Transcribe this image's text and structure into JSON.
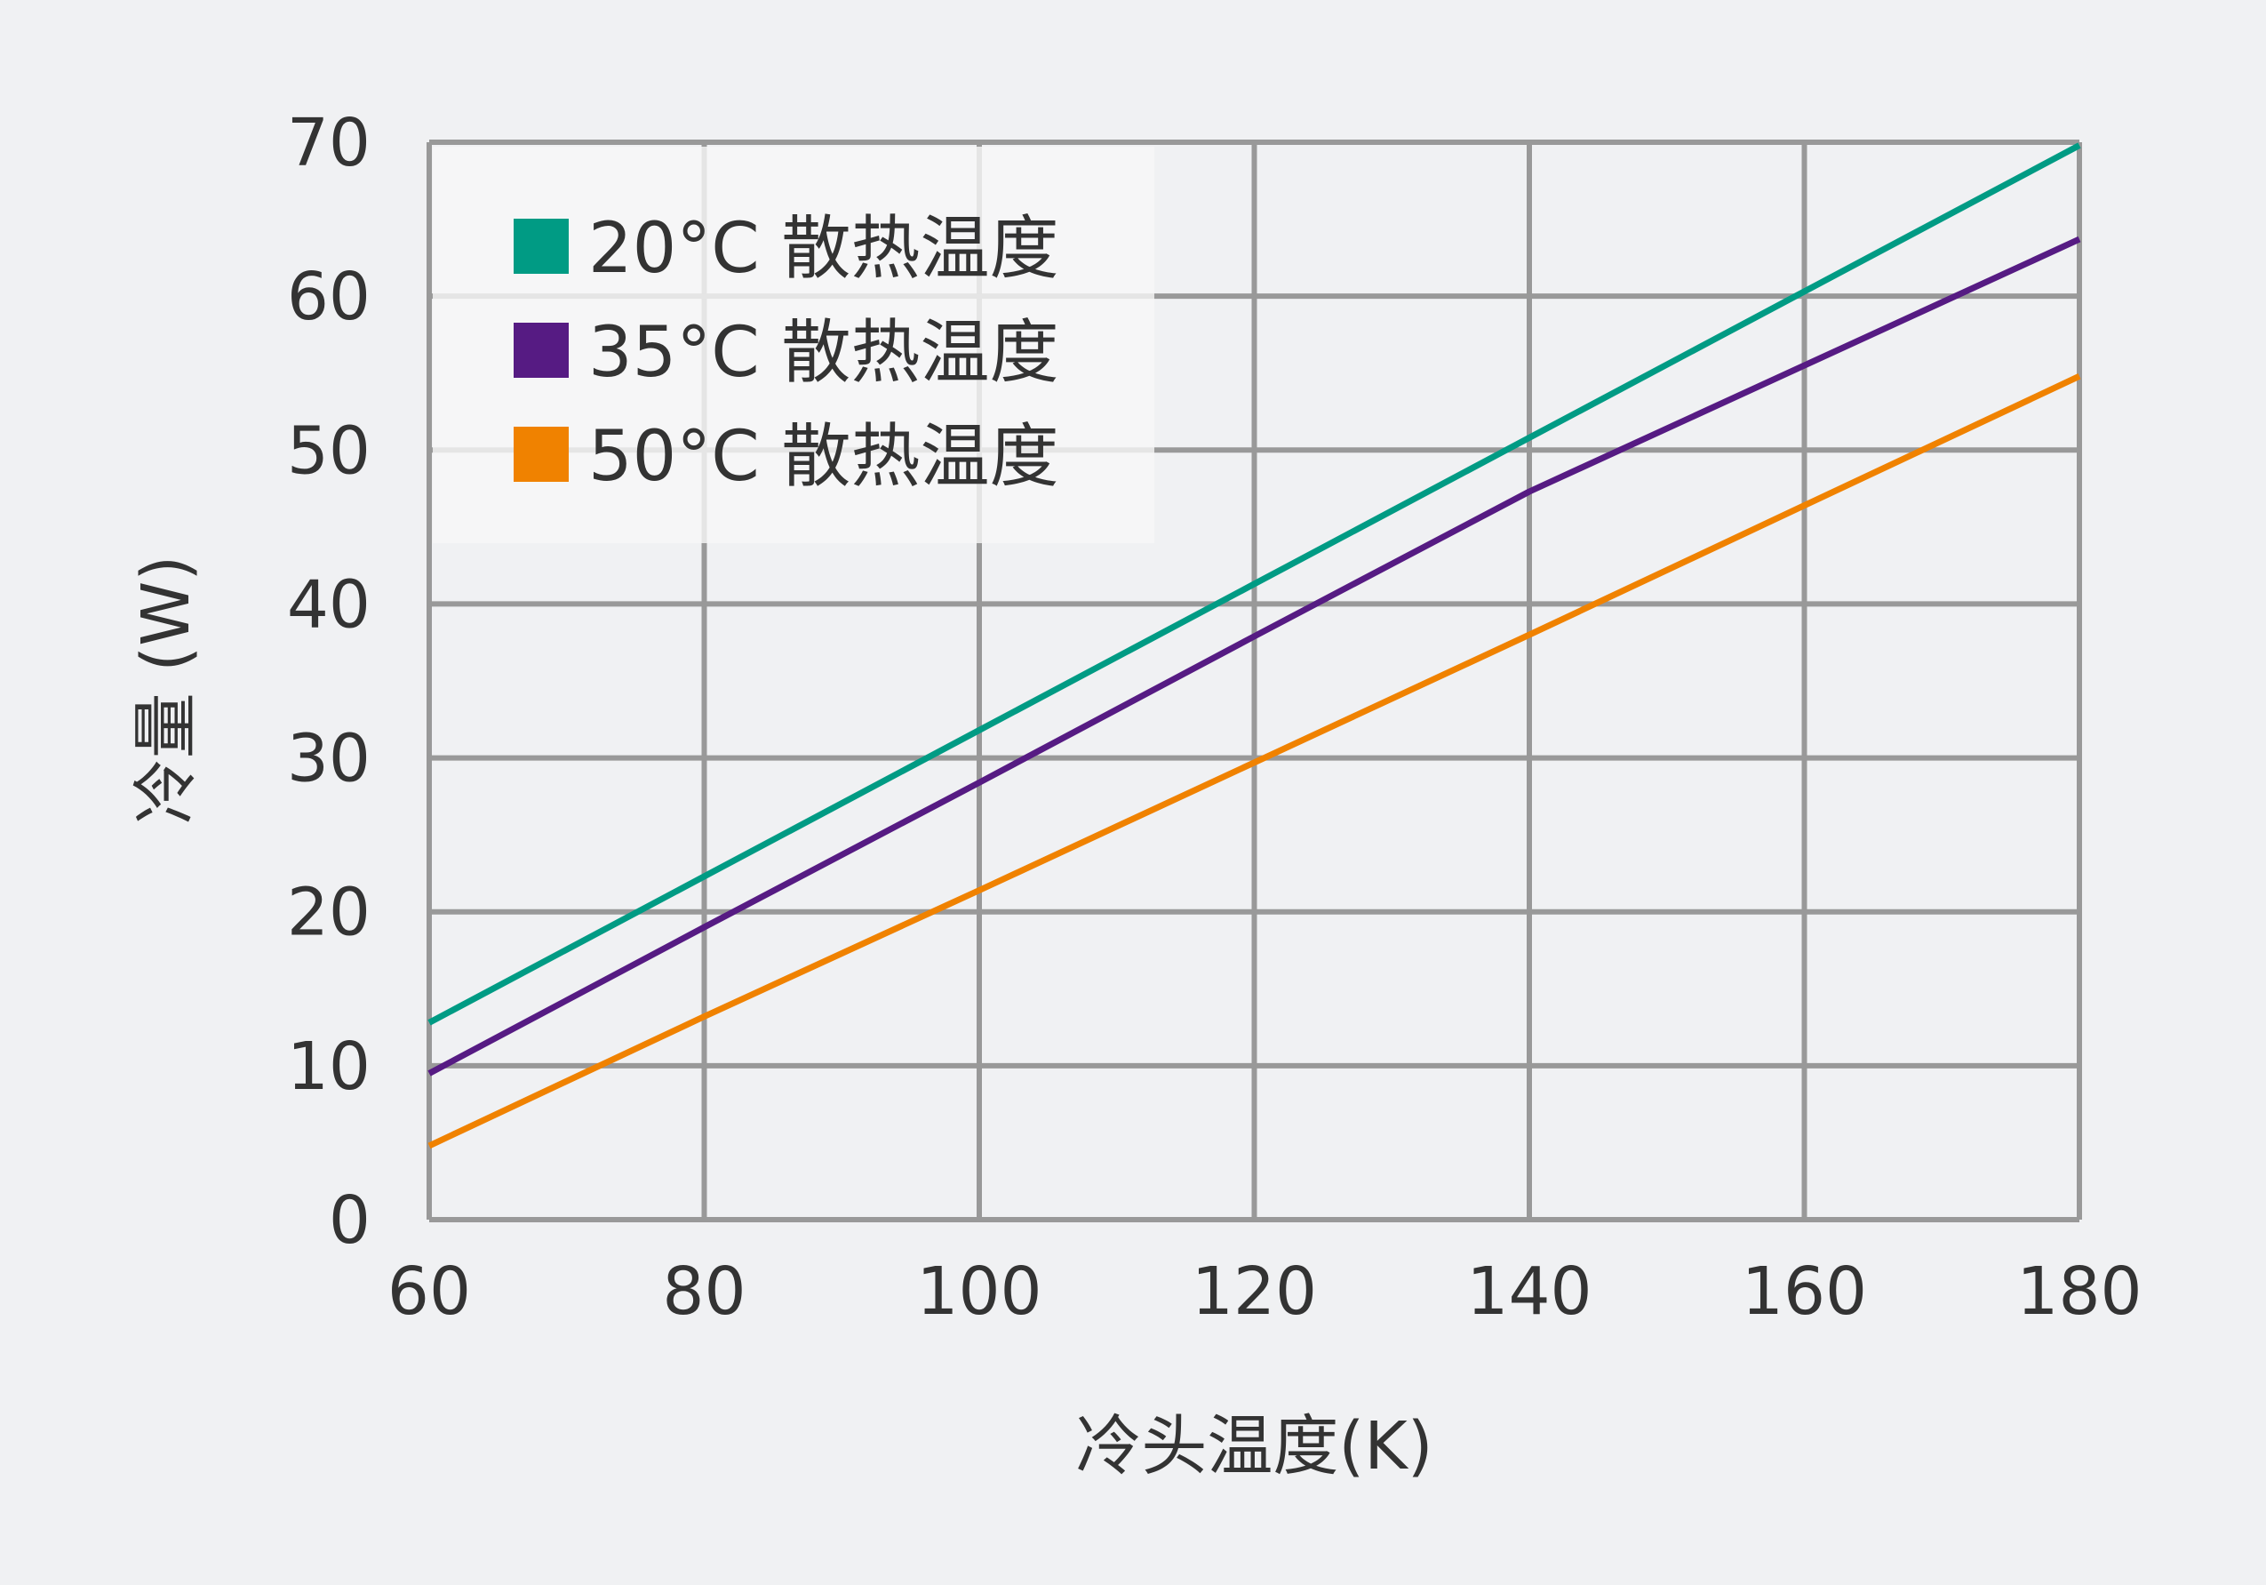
{
  "colors": {
    "background": "#f0f1f3",
    "grid": "#999999",
    "text": "#333333",
    "legend_background": "#f7f7f8"
  },
  "chart_data": {
    "type": "line",
    "title": "",
    "xlabel": "冷头温度(K)",
    "ylabel": "冷量 (W)",
    "xlim": [
      60,
      180
    ],
    "ylim": [
      0,
      70
    ],
    "x_ticks": [
      60,
      80,
      100,
      120,
      140,
      160,
      180
    ],
    "y_ticks": [
      0,
      10,
      20,
      30,
      40,
      50,
      60,
      70
    ],
    "grid": true,
    "legend_position": "top-left",
    "series": [
      {
        "name": "20°C 散热温度",
        "color": "#009b84",
        "x": [
          60,
          80,
          100,
          120,
          140,
          160,
          180
        ],
        "y": [
          12.8,
          22.3,
          31.8,
          41.3,
          50.8,
          60.3,
          69.8
        ]
      },
      {
        "name": "35°C 散热温度",
        "color": "#561b83",
        "x": [
          60,
          80,
          100,
          120,
          140,
          160,
          180
        ],
        "y": [
          9.5,
          19.0,
          28.4,
          37.9,
          47.3,
          55.5,
          63.7
        ]
      },
      {
        "name": "50°C 散热温度",
        "color": "#f08200",
        "x": [
          60,
          80,
          100,
          120,
          140,
          160,
          180
        ],
        "y": [
          4.8,
          13.2,
          21.4,
          29.7,
          38.0,
          46.4,
          54.8
        ]
      }
    ]
  }
}
